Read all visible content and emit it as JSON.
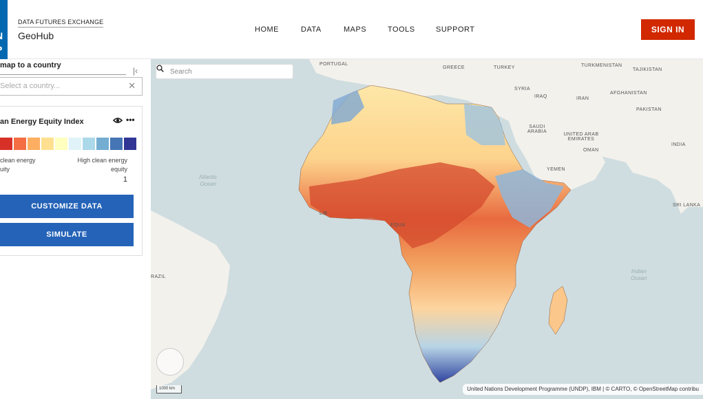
{
  "header": {
    "logo_text": [
      "N",
      "P"
    ],
    "brand_subtitle": "DATA FUTURES EXCHANGE",
    "brand_title": "GeoHub",
    "nav": [
      "HOME",
      "DATA",
      "MAPS",
      "TOOLS",
      "SUPPORT"
    ],
    "signin_label": "SIGN IN",
    "signin_color": "#d12800"
  },
  "sidebar": {
    "zoom_label": "map to a country",
    "collapse_icon": "collapse-left-icon",
    "country_placeholder": "Select a country...",
    "clear_icon": "close-icon",
    "layer": {
      "title": "an Energy Equity Index",
      "visibility_icon": "eye-icon",
      "menu_icon": "more-horizontal-icon",
      "legend_colors": [
        "#a50026",
        "#d73027",
        "#f46d43",
        "#fdae61",
        "#fee090",
        "#ffffbf",
        "#e0f3f8",
        "#abd9e9",
        "#74add1",
        "#4575b4",
        "#313695"
      ],
      "legend_low": [
        "clean energy",
        "uity"
      ],
      "legend_high": [
        "High clean energy",
        "equity"
      ],
      "legend_max_value": "1"
    },
    "customize_label": "CUSTOMIZE DATA",
    "simulate_label": "SIMULATE"
  },
  "map": {
    "search_placeholder": "Search",
    "search_icon": "search-icon",
    "country_labels": [
      "PORTUGAL",
      "GREECE",
      "TURKEY",
      "TURKMENISTAN",
      "TAJIKISTAN",
      "SYRIA",
      "IRAQ",
      "IRAN",
      "AFGHANISTAN",
      "PAKISTAN",
      "SAUDI ARABIA",
      "UNITED ARAB EMIRATES",
      "OMAN",
      "INDIA",
      "YEMEN",
      "SRI LANKA",
      "EQUA",
      "LIB",
      "RAZIL"
    ],
    "ocean_labels": [
      [
        "Atlantic",
        "Ocean"
      ],
      [
        "Indian",
        "Ocean"
      ]
    ],
    "scale_label": "1000 km",
    "attribution": "United Nations Development Programme (UNDP), IBM | © CARTO, © OpenStreetMap contribu"
  }
}
